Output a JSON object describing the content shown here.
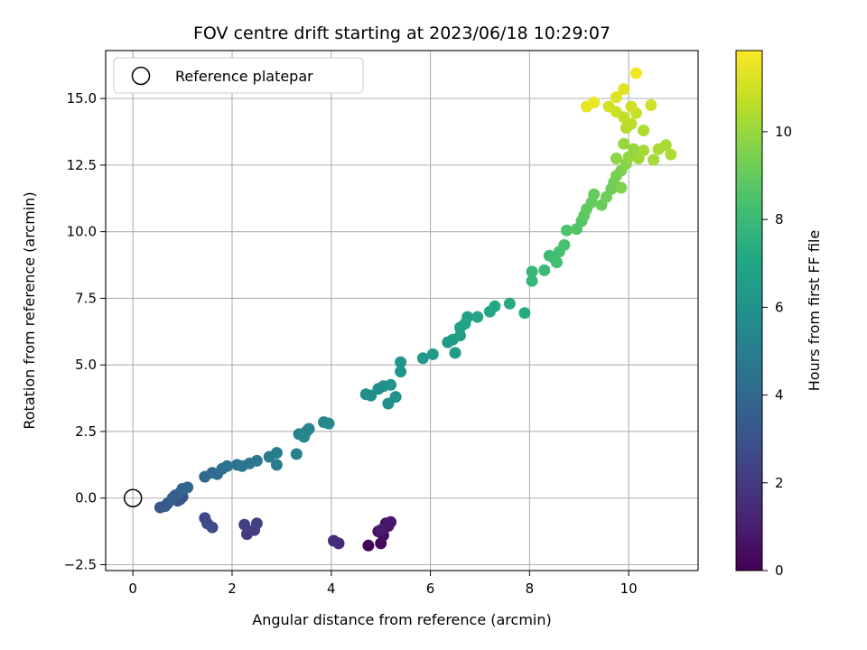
{
  "chart_data": {
    "type": "scatter",
    "title": "FOV centre drift starting at 2023/06/18 10:29:07",
    "xlabel": "Angular distance from reference (arcmin)",
    "ylabel": "Rotation from reference (arcmin)",
    "xlim": [
      -0.55,
      11.4
    ],
    "ylim": [
      -2.72,
      16.8
    ],
    "xticks": [
      0,
      2,
      4,
      6,
      8,
      10
    ],
    "xtick_labels": [
      "0",
      "2",
      "4",
      "6",
      "8",
      "10"
    ],
    "yticks": [
      -2.5,
      0.0,
      2.5,
      5.0,
      7.5,
      10.0,
      12.5,
      15.0
    ],
    "ytick_labels": [
      "−2.5",
      "0.0",
      "2.5",
      "5.0",
      "7.5",
      "10.0",
      "12.5",
      "15.0"
    ],
    "grid": true,
    "legend": {
      "placement": "top-left",
      "entries": [
        "Reference platepar"
      ]
    },
    "reference_point": {
      "x": 0,
      "y": 0,
      "label": "Reference platepar"
    },
    "colormap": "viridis",
    "colorbar": {
      "label": "Hours from first FF file",
      "range": [
        0,
        11.85
      ],
      "ticks": [
        0,
        2,
        4,
        6,
        8,
        10
      ],
      "tick_labels": [
        "0",
        "2",
        "4",
        "6",
        "8",
        "10"
      ]
    },
    "points": [
      [
        4.75,
        -1.78,
        0.1
      ],
      [
        5.0,
        -1.7,
        0.3
      ],
      [
        4.95,
        -1.25,
        0.4
      ],
      [
        5.05,
        -1.4,
        0.5
      ],
      [
        5.1,
        -0.95,
        0.6
      ],
      [
        5.15,
        -1.05,
        0.7
      ],
      [
        5.2,
        -0.9,
        0.8
      ],
      [
        5.0,
        -1.2,
        0.9
      ],
      [
        4.05,
        -1.6,
        1.4
      ],
      [
        4.15,
        -1.7,
        1.5
      ],
      [
        2.3,
        -1.35,
        2.0
      ],
      [
        2.45,
        -1.2,
        2.1
      ],
      [
        2.25,
        -1.0,
        2.2
      ],
      [
        2.5,
        -0.95,
        2.3
      ],
      [
        1.45,
        -0.75,
        2.5
      ],
      [
        1.5,
        -0.95,
        2.6
      ],
      [
        1.6,
        -1.1,
        2.7
      ],
      [
        0.95,
        -0.05,
        2.9
      ],
      [
        1.0,
        0.05,
        3.0
      ],
      [
        0.9,
        -0.1,
        3.1
      ],
      [
        0.55,
        -0.35,
        3.2
      ],
      [
        0.65,
        -0.3,
        3.3
      ],
      [
        0.7,
        -0.2,
        3.4
      ],
      [
        0.8,
        0.0,
        3.5
      ],
      [
        0.85,
        0.1,
        3.6
      ],
      [
        0.95,
        0.2,
        3.7
      ],
      [
        1.0,
        0.35,
        3.8
      ],
      [
        1.1,
        0.4,
        3.9
      ],
      [
        1.45,
        0.8,
        4.0
      ],
      [
        1.6,
        0.95,
        4.1
      ],
      [
        1.7,
        0.9,
        4.2
      ],
      [
        1.8,
        1.1,
        4.3
      ],
      [
        1.9,
        1.2,
        4.4
      ],
      [
        2.1,
        1.25,
        4.5
      ],
      [
        2.2,
        1.2,
        4.6
      ],
      [
        2.35,
        1.3,
        4.7
      ],
      [
        2.5,
        1.4,
        4.8
      ],
      [
        2.75,
        1.55,
        4.9
      ],
      [
        2.9,
        1.7,
        5.0
      ],
      [
        2.9,
        1.25,
        5.0
      ],
      [
        3.3,
        1.65,
        5.1
      ],
      [
        3.35,
        2.4,
        5.2
      ],
      [
        3.5,
        2.5,
        5.3
      ],
      [
        3.55,
        2.6,
        5.3
      ],
      [
        3.45,
        2.3,
        5.4
      ],
      [
        3.85,
        2.85,
        5.5
      ],
      [
        3.95,
        2.8,
        5.5
      ],
      [
        4.7,
        3.9,
        5.7
      ],
      [
        4.8,
        3.85,
        5.8
      ],
      [
        4.95,
        4.1,
        5.8
      ],
      [
        5.05,
        4.2,
        5.9
      ],
      [
        5.15,
        3.55,
        6.0
      ],
      [
        5.3,
        3.8,
        6.0
      ],
      [
        5.2,
        4.25,
        6.1
      ],
      [
        5.4,
        4.75,
        6.2
      ],
      [
        5.4,
        5.1,
        6.2
      ],
      [
        5.85,
        5.25,
        6.3
      ],
      [
        6.05,
        5.4,
        6.4
      ],
      [
        6.35,
        5.85,
        6.4
      ],
      [
        6.45,
        5.95,
        6.5
      ],
      [
        6.5,
        5.45,
        6.5
      ],
      [
        6.6,
        6.1,
        6.6
      ],
      [
        6.6,
        6.4,
        6.7
      ],
      [
        6.7,
        6.55,
        6.8
      ],
      [
        6.75,
        6.8,
        6.8
      ],
      [
        6.95,
        6.8,
        6.9
      ],
      [
        7.2,
        7.0,
        7.0
      ],
      [
        7.3,
        7.2,
        7.1
      ],
      [
        7.6,
        7.3,
        7.2
      ],
      [
        7.9,
        6.95,
        7.3
      ],
      [
        8.05,
        8.15,
        7.8
      ],
      [
        8.05,
        8.5,
        7.9
      ],
      [
        8.3,
        8.55,
        8.0
      ],
      [
        8.4,
        9.1,
        8.1
      ],
      [
        8.5,
        9.0,
        8.2
      ],
      [
        8.55,
        8.85,
        8.3
      ],
      [
        8.6,
        9.25,
        8.3
      ],
      [
        8.7,
        9.5,
        8.4
      ],
      [
        8.75,
        10.05,
        8.5
      ],
      [
        8.95,
        10.1,
        8.6
      ],
      [
        9.05,
        10.4,
        8.7
      ],
      [
        9.1,
        10.6,
        8.8
      ],
      [
        9.15,
        10.85,
        8.9
      ],
      [
        9.25,
        11.1,
        9.0
      ],
      [
        9.3,
        11.4,
        9.0
      ],
      [
        9.45,
        11.0,
        9.1
      ],
      [
        9.55,
        11.3,
        9.2
      ],
      [
        9.65,
        11.6,
        9.2
      ],
      [
        9.7,
        11.85,
        9.3
      ],
      [
        9.75,
        12.1,
        9.4
      ],
      [
        9.85,
        12.3,
        9.5
      ],
      [
        9.85,
        11.65,
        9.6
      ],
      [
        9.95,
        12.55,
        9.7
      ],
      [
        9.75,
        12.75,
        9.8
      ],
      [
        10.0,
        12.8,
        9.9
      ],
      [
        10.1,
        13.1,
        9.9
      ],
      [
        9.9,
        13.3,
        10.0
      ],
      [
        10.2,
        12.75,
        10.1
      ],
      [
        10.3,
        13.05,
        10.2
      ],
      [
        10.5,
        12.7,
        10.2
      ],
      [
        10.6,
        13.1,
        10.3
      ],
      [
        10.75,
        13.25,
        10.3
      ],
      [
        10.85,
        12.9,
        10.4
      ],
      [
        10.3,
        13.8,
        10.4
      ],
      [
        9.95,
        13.9,
        10.5
      ],
      [
        10.05,
        14.05,
        10.6
      ],
      [
        9.9,
        14.3,
        10.7
      ],
      [
        10.15,
        14.45,
        10.8
      ],
      [
        9.75,
        14.5,
        10.9
      ],
      [
        10.05,
        14.7,
        11.0
      ],
      [
        10.45,
        14.75,
        11.0
      ],
      [
        9.6,
        14.7,
        11.1
      ],
      [
        9.75,
        15.05,
        11.2
      ],
      [
        9.9,
        15.35,
        11.3
      ],
      [
        9.15,
        14.7,
        11.4
      ],
      [
        9.3,
        14.85,
        11.5
      ],
      [
        10.15,
        15.95,
        11.7
      ]
    ]
  }
}
